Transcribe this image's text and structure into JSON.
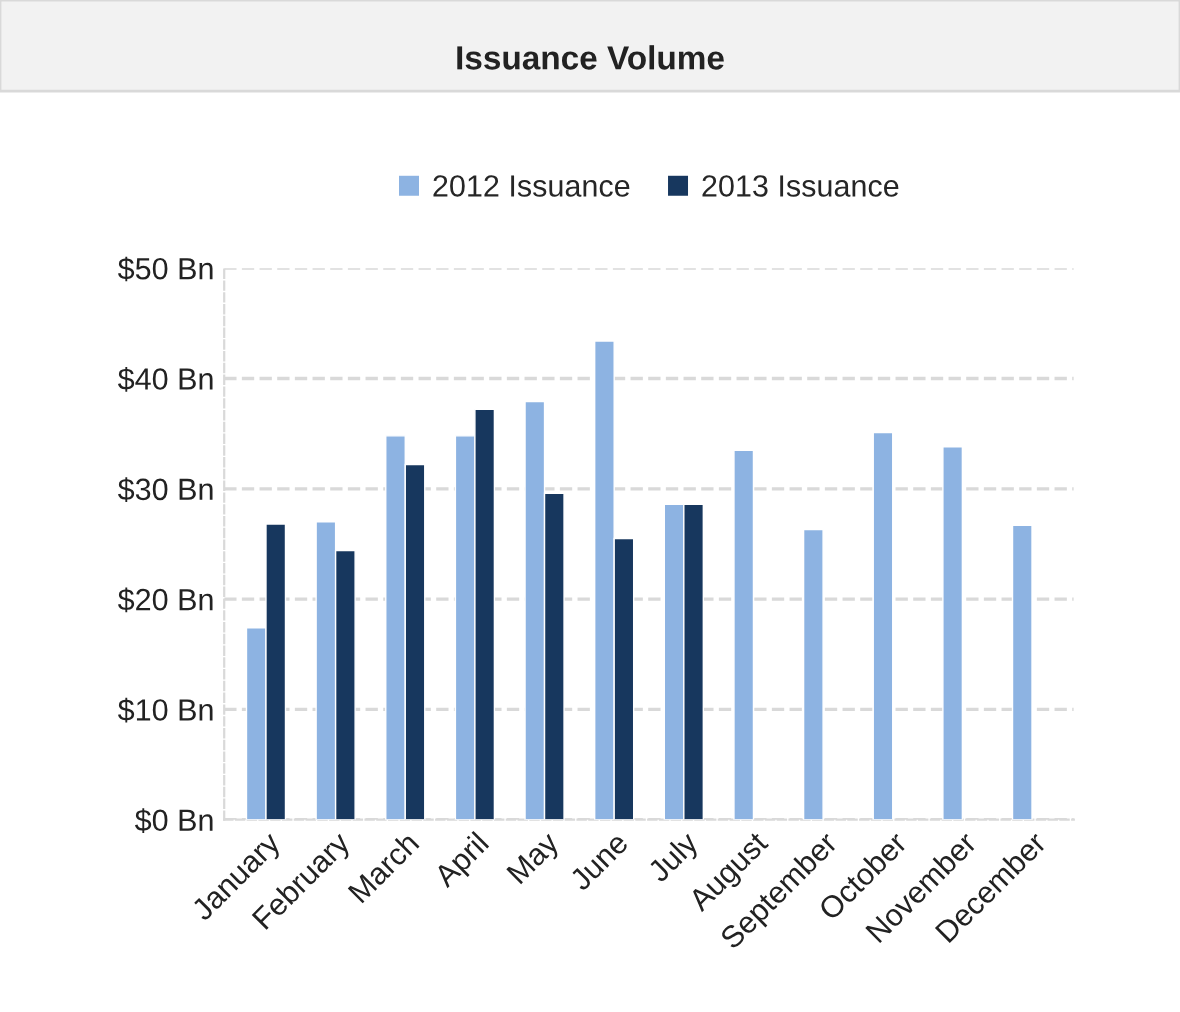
{
  "chart_data": {
    "type": "bar",
    "title": "Issuance Volume",
    "categories": [
      "January",
      "February",
      "March",
      "April",
      "May",
      "June",
      "July",
      "August",
      "September",
      "October",
      "November",
      "December"
    ],
    "series": [
      {
        "name": "2012 Issuance",
        "color": "#8db3e2",
        "values": [
          17.4,
          27.0,
          34.8,
          34.8,
          37.9,
          43.4,
          28.6,
          33.5,
          26.3,
          35.1,
          33.8,
          26.7
        ]
      },
      {
        "name": "2013 Issuance",
        "color": "#17375e",
        "values": [
          26.8,
          24.4,
          32.2,
          37.2,
          29.6,
          25.5,
          28.6,
          null,
          null,
          null,
          null,
          null
        ]
      }
    ],
    "ylim": [
      0,
      50
    ],
    "yticks": [
      {
        "value": 0,
        "label": "$0 Bn"
      },
      {
        "value": 10,
        "label": "$10 Bn"
      },
      {
        "value": 20,
        "label": "$20 Bn"
      },
      {
        "value": 30,
        "label": "$30 Bn"
      },
      {
        "value": 40,
        "label": "$40 Bn"
      },
      {
        "value": 50,
        "label": "$50 Bn"
      }
    ],
    "grid": "y",
    "legend": "top"
  }
}
